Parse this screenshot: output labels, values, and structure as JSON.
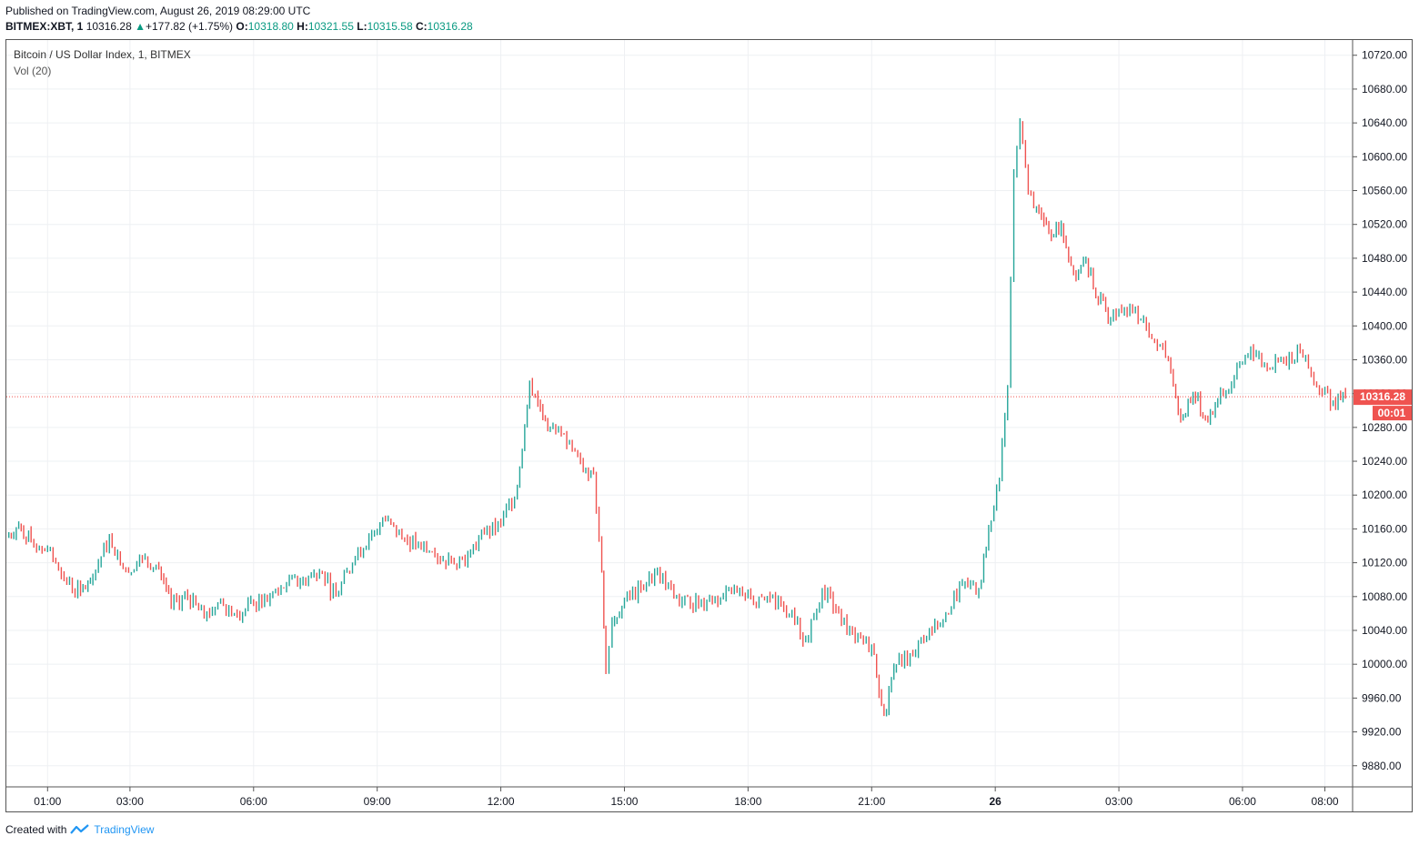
{
  "header": {
    "published": "Published on TradingView.com, August 26, 2019 08:29:00 UTC",
    "symbol": "BITMEX:XBT, 1",
    "last": "10316.28",
    "change": "+177.82 (+1.75%)",
    "o_label": "O:",
    "o_value": "10318.80",
    "h_label": "H:",
    "h_value": "10321.55",
    "l_label": "L:",
    "l_value": "10315.58",
    "c_label": "C:",
    "c_value": "10316.28",
    "up_arrow": "▲"
  },
  "legend": {
    "title": "Bitcoin / US Dollar Index, 1, BITMEX",
    "volume": "Vol (20)"
  },
  "footer": {
    "created_with": "Created with",
    "brand": "TradingView",
    "logo_icon": "tradingview-logo-icon"
  },
  "colors": {
    "up": "#26a69a",
    "down": "#ef5350",
    "grid": "#eef0f3",
    "price_line": "#ef5350",
    "price_label_bg": "#ef5350",
    "axis_text": "#131722"
  },
  "chart_data": {
    "type": "line",
    "title": "Bitcoin / US Dollar Index, 1, BITMEX",
    "xlabel": "",
    "ylabel": "",
    "ylim": [
      9855,
      10738
    ],
    "y_ticks": [
      "10720.00",
      "10680.00",
      "10640.00",
      "10600.00",
      "10560.00",
      "10520.00",
      "10480.00",
      "10440.00",
      "10400.00",
      "10360.00",
      "10320.00",
      "10280.00",
      "10240.00",
      "10200.00",
      "10160.00",
      "10120.00",
      "10080.00",
      "10040.00",
      "10000.00",
      "9960.00",
      "9920.00",
      "9880.00"
    ],
    "x_ticks": [
      "01:00",
      "03:00",
      "06:00",
      "09:00",
      "12:00",
      "15:00",
      "18:00",
      "21:00",
      "26",
      "03:00",
      "06:00",
      "08:00"
    ],
    "x_tick_hours": [
      1,
      3,
      6,
      9,
      12,
      15,
      18,
      21,
      24,
      27,
      30,
      32
    ],
    "x_range_hours": [
      0,
      32.65
    ],
    "last_price": "10316.28",
    "countdown": "00:01",
    "grid": true,
    "series": [
      {
        "x_hours": [
          0,
          0.3,
          0.6,
          1.0,
          1.4,
          1.8,
          2.1,
          2.5,
          2.9,
          3.3,
          3.7,
          4.0,
          4.4,
          4.8,
          5.2,
          5.6,
          6.0,
          6.4,
          6.8,
          7.2,
          7.6,
          8.0,
          8.4,
          8.8,
          9.2,
          9.6,
          10.0,
          10.4,
          10.8,
          11.2,
          11.6,
          12.0,
          12.4,
          12.7,
          12.9,
          13.2,
          13.6,
          14.0,
          14.25,
          14.45,
          14.55,
          14.7,
          15.0,
          15.4,
          15.8,
          16.2,
          16.6,
          17.0,
          17.4,
          17.8,
          18.2,
          18.6,
          19.0,
          19.4,
          19.8,
          20.2,
          20.6,
          21.0,
          21.3,
          21.6,
          22.0,
          22.4,
          22.8,
          23.2,
          23.6,
          23.9,
          24.1,
          24.3,
          24.45,
          24.6,
          24.8,
          25.0,
          25.3,
          25.6,
          25.9,
          26.2,
          26.5,
          26.8,
          27.0,
          27.4,
          27.8,
          28.2,
          28.5,
          28.8,
          29.1,
          29.4,
          29.8,
          30.2,
          30.6,
          31.0,
          31.4,
          31.8,
          32.2,
          32.5
        ],
        "values": [
          10150,
          10165,
          10145,
          10135,
          10100,
          10085,
          10105,
          10150,
          10110,
          10125,
          10115,
          10070,
          10080,
          10055,
          10075,
          10060,
          10070,
          10080,
          10095,
          10100,
          10110,
          10080,
          10120,
          10150,
          10170,
          10150,
          10140,
          10130,
          10120,
          10130,
          10155,
          10165,
          10210,
          10335,
          10310,
          10280,
          10260,
          10230,
          10225,
          10110,
          9990,
          10050,
          10075,
          10090,
          10110,
          10080,
          10070,
          10075,
          10080,
          10090,
          10070,
          10080,
          10060,
          10030,
          10090,
          10060,
          10030,
          10020,
          9940,
          10000,
          10010,
          10040,
          10060,
          10095,
          10090,
          10170,
          10220,
          10330,
          10580,
          10640,
          10560,
          10540,
          10510,
          10520,
          10460,
          10480,
          10430,
          10410,
          10420,
          10420,
          10385,
          10360,
          10290,
          10320,
          10290,
          10310,
          10340,
          10375,
          10350,
          10360,
          10370,
          10330,
          10310,
          10316.28
        ]
      }
    ]
  }
}
